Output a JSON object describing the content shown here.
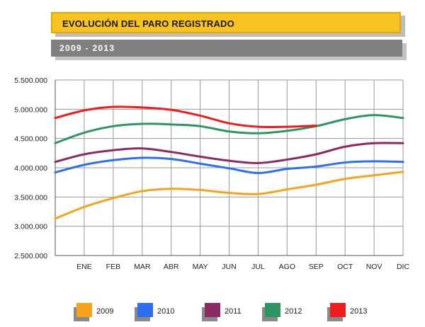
{
  "header": {
    "title": "EVOLUCIÓN DEL PARO REGISTRADO",
    "subtitle": "2009 - 2013"
  },
  "chart_data": {
    "type": "line",
    "categories": [
      "",
      "ENE",
      "FEB",
      "MAR",
      "ABR",
      "MAY",
      "JUN",
      "JUL",
      "AGO",
      "SEP",
      "OCT",
      "NOV",
      "DIC"
    ],
    "ylim": [
      2500000,
      5500000
    ],
    "yticks": [
      2500000,
      3000000,
      3500000,
      4000000,
      4500000,
      5000000,
      5500000
    ],
    "ytick_labels": [
      "2.500.000",
      "3.000.000",
      "3.500.000",
      "4.000.000",
      "4.500.000",
      "5.000.000",
      "5.500.000"
    ],
    "grid": true,
    "legend_position": "bottom",
    "series": [
      {
        "name": "2009",
        "color": "#f7a21b",
        "values": [
          3130000,
          3330000,
          3480000,
          3600000,
          3640000,
          3620000,
          3570000,
          3550000,
          3630000,
          3710000,
          3810000,
          3870000,
          3930000
        ]
      },
      {
        "name": "2010",
        "color": "#2e6ef0",
        "values": [
          3920000,
          4050000,
          4130000,
          4170000,
          4150000,
          4070000,
          3990000,
          3910000,
          3980000,
          4020000,
          4090000,
          4110000,
          4100000
        ]
      },
      {
        "name": "2011",
        "color": "#8e2a63",
        "values": [
          4100000,
          4230000,
          4300000,
          4330000,
          4270000,
          4190000,
          4120000,
          4080000,
          4140000,
          4230000,
          4360000,
          4420000,
          4420000
        ]
      },
      {
        "name": "2012",
        "color": "#2e9462",
        "values": [
          4420000,
          4600000,
          4710000,
          4750000,
          4740000,
          4710000,
          4620000,
          4590000,
          4630000,
          4710000,
          4830000,
          4900000,
          4850000
        ]
      },
      {
        "name": "2013",
        "color": "#ee1c1c",
        "values": [
          4850000,
          4980000,
          5040000,
          5030000,
          4990000,
          4890000,
          4760000,
          4700000,
          4700000,
          4720000,
          null,
          null,
          null
        ]
      }
    ]
  }
}
